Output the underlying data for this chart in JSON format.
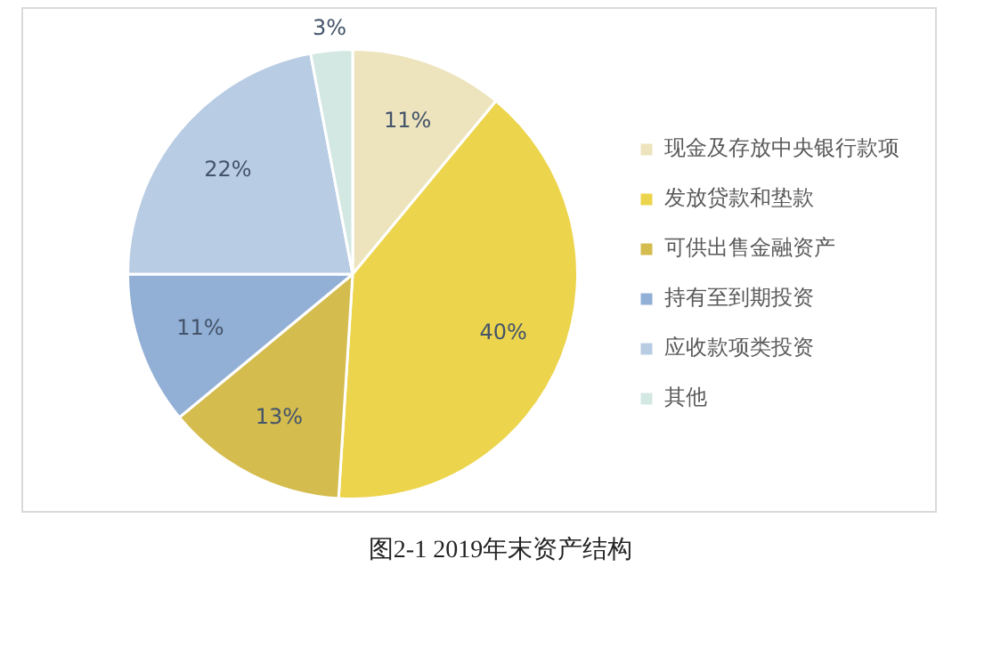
{
  "chart_data": {
    "type": "pie",
    "title": "图2-1  2019年末资产结构",
    "categories": [
      "现金及存放中央银行款项",
      "发放贷款和垫款",
      "可供出售金融资产",
      "持有至到期投资",
      "应收款项类投资",
      "其他"
    ],
    "values": [
      11,
      40,
      13,
      11,
      22,
      3
    ],
    "colors": [
      "#ede4bd",
      "#ecd44c",
      "#d4bc4e",
      "#92afd6",
      "#b8cce4",
      "#d3e8e2"
    ],
    "value_labels": [
      "11%",
      "40%",
      "13%",
      "11%",
      "22%",
      "3%"
    ],
    "legend": "right"
  }
}
